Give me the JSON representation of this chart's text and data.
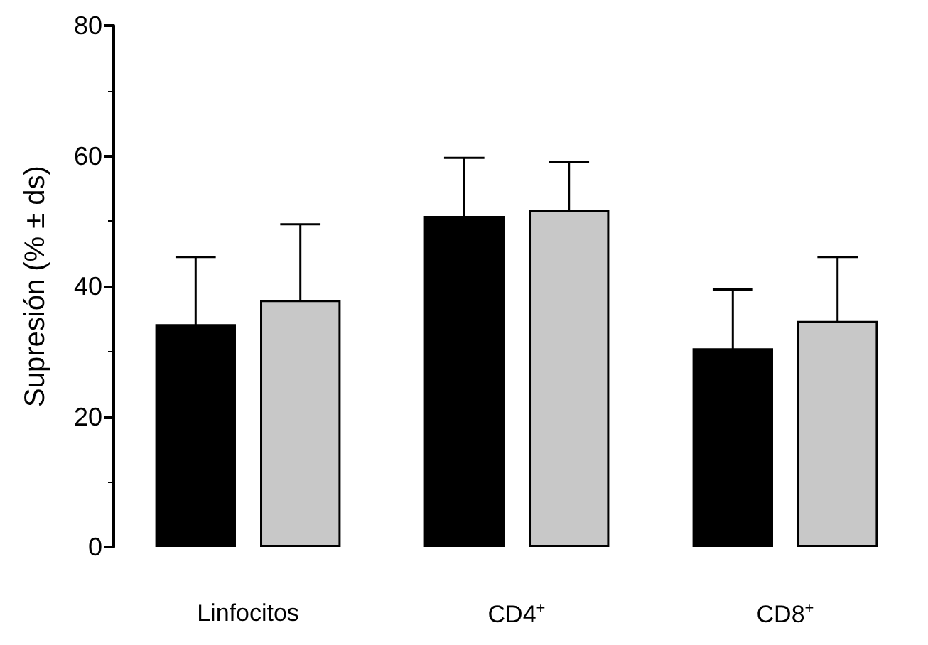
{
  "chart_data": {
    "type": "bar",
    "ylabel": "Supresión (% ± ds)",
    "categories": [
      "Linfocitos",
      "CD4$^{+}$",
      "CD8$^{+}$"
    ],
    "series": [
      {
        "color": "#000000",
        "values": [
          34.2,
          50.8,
          30.5
        ],
        "errors": [
          10.3,
          8.9,
          9
        ]
      },
      {
        "color": "#c8c8c8",
        "values": [
          37.9,
          51.7,
          34.7
        ],
        "errors": [
          11.6,
          7.4,
          9.8
        ]
      }
    ],
    "ylim": [
      0,
      80
    ],
    "yticks": [
      0,
      20,
      40,
      60,
      80
    ],
    "grid": false
  }
}
